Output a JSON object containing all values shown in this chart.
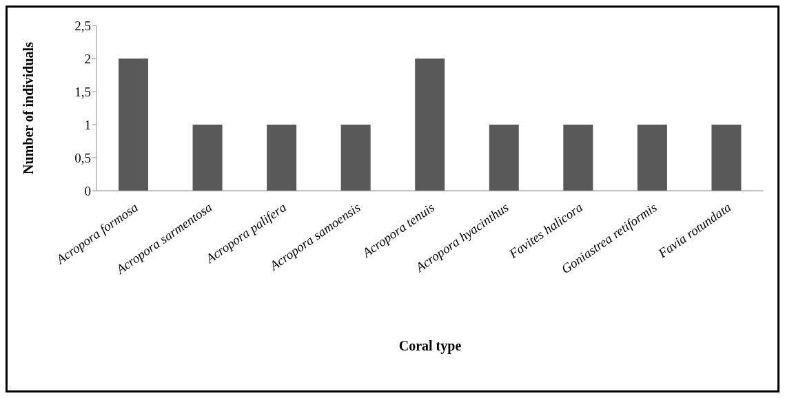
{
  "chart_data": {
    "type": "bar",
    "xlabel": "Coral type",
    "ylabel": "Number of individuals",
    "categories": [
      "Acropora formosa",
      "Acropora sarmentosa",
      "Acropora palifera",
      "Acropora samoensis",
      "Acropora tenuis",
      "Acropora hyacinthus",
      "Favites halicora",
      "Goniastrea retiformis",
      "Favia rotundata"
    ],
    "values": [
      2,
      1,
      1,
      1,
      2,
      1,
      1,
      1,
      1
    ],
    "color": "#595959",
    "ylim": [
      0,
      2.5
    ],
    "yticks": [
      0,
      {
        "value": 0.5,
        "label": "0,5"
      },
      1,
      {
        "value": 1.5,
        "label": "1,5"
      },
      2,
      {
        "value": 2.5,
        "label": "2,5"
      }
    ],
    "grid": false,
    "legend": false
  }
}
